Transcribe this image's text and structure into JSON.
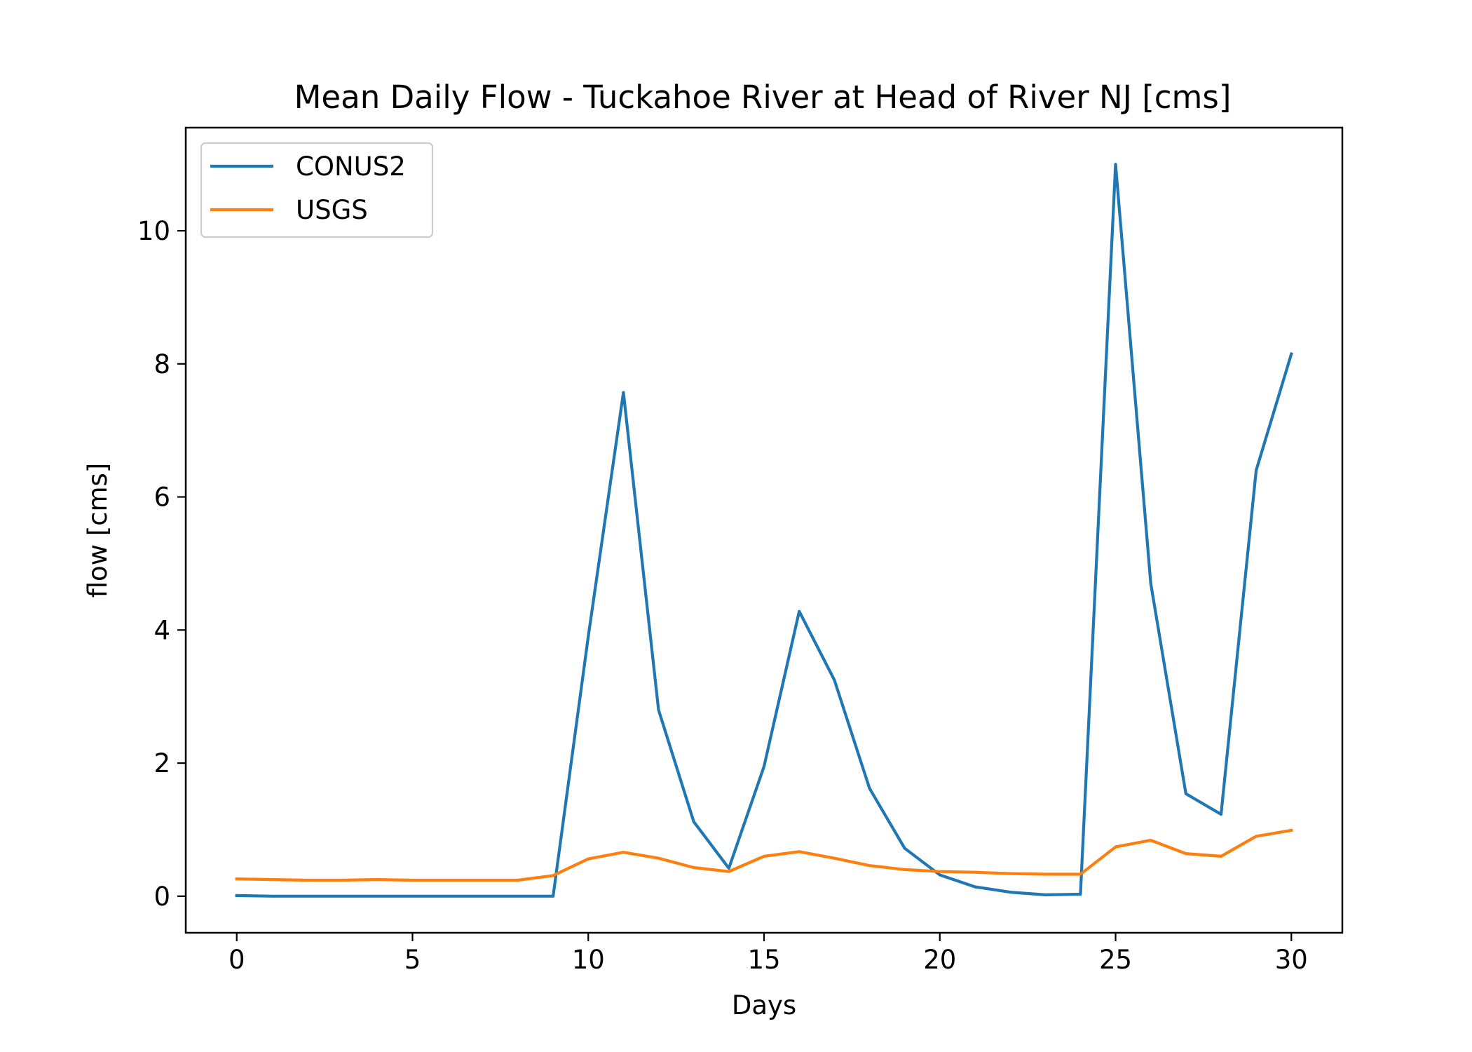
{
  "chart_data": {
    "type": "line",
    "title": "Mean Daily Flow - Tuckahoe River at Head of River NJ [cms]",
    "xlabel": "Days",
    "ylabel": "flow [cms]",
    "xlim": [
      -1.45,
      31.45
    ],
    "ylim": [
      -0.55,
      11.55
    ],
    "xticks": [
      0,
      5,
      10,
      15,
      20,
      25,
      30
    ],
    "yticks": [
      0,
      2,
      4,
      6,
      8,
      10
    ],
    "grid": false,
    "legend_position": "top-left",
    "x": [
      0,
      1,
      2,
      3,
      4,
      5,
      6,
      7,
      8,
      9,
      10,
      11,
      12,
      13,
      14,
      15,
      16,
      17,
      18,
      19,
      20,
      21,
      22,
      23,
      24,
      25,
      26,
      27,
      28,
      29,
      30
    ],
    "series": [
      {
        "name": "CONUS2",
        "color": "#1f77b4",
        "values": [
          0.01,
          0.0,
          0.0,
          0.0,
          0.0,
          0.0,
          0.0,
          0.0,
          0.0,
          0.0,
          3.9,
          7.57,
          2.8,
          1.12,
          0.42,
          1.95,
          4.28,
          3.25,
          1.62,
          0.72,
          0.32,
          0.14,
          0.06,
          0.02,
          0.03,
          11.0,
          4.7,
          1.54,
          1.23,
          6.4,
          8.15
        ]
      },
      {
        "name": "USGS",
        "color": "#ff7f0e",
        "values": [
          0.26,
          0.25,
          0.24,
          0.24,
          0.25,
          0.24,
          0.24,
          0.24,
          0.24,
          0.31,
          0.56,
          0.66,
          0.57,
          0.43,
          0.37,
          0.6,
          0.67,
          0.57,
          0.46,
          0.4,
          0.37,
          0.36,
          0.34,
          0.33,
          0.33,
          0.74,
          0.84,
          0.64,
          0.6,
          0.9,
          0.99
        ]
      }
    ]
  }
}
